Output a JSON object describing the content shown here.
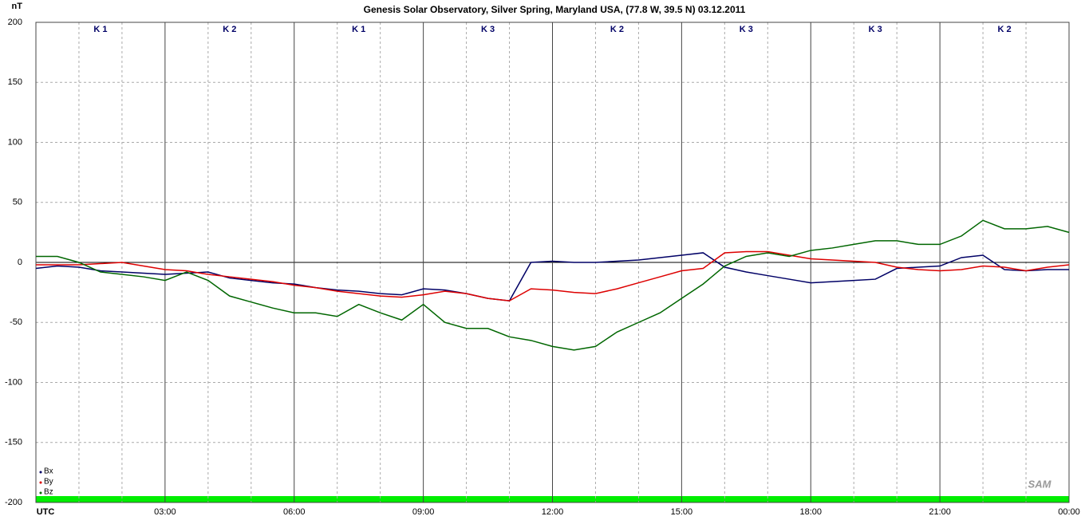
{
  "chart_data": {
    "type": "line",
    "title": "Genesis Solar Observatory, Silver Spring, Maryland USA, (77.8 W, 39.5 N)  03.12.2011",
    "y_label": "nT",
    "logo": "SAM",
    "k_index_labels": [
      "K 1",
      "K 2",
      "K 1",
      "K 3",
      "K 2",
      "K 3",
      "K 3",
      "K 2"
    ],
    "x": [
      0,
      0.5,
      1,
      1.5,
      2,
      2.5,
      3,
      3.5,
      4,
      4.5,
      5,
      5.5,
      6,
      6.5,
      7,
      7.5,
      8,
      8.5,
      9,
      9.5,
      10,
      10.5,
      11,
      11.5,
      12,
      12.5,
      13,
      13.5,
      14,
      14.5,
      15,
      15.5,
      16,
      16.5,
      17,
      17.5,
      18,
      18.5,
      19,
      19.5,
      20,
      20.5,
      21,
      21.5,
      22,
      22.5,
      23,
      23.5,
      24
    ],
    "series": [
      {
        "name": "Bx",
        "color": "#000066",
        "values": [
          -5,
          -3,
          -4,
          -7,
          -8,
          -9,
          -10,
          -9,
          -8,
          -13,
          -15,
          -17,
          -18,
          -21,
          -23,
          -24,
          -26,
          -27,
          -22,
          -23,
          -26,
          -30,
          -32,
          0,
          1,
          0,
          0,
          1,
          2,
          4,
          6,
          8,
          -4,
          -8,
          -11,
          -14,
          -17,
          -16,
          -15,
          -14,
          -5,
          -4,
          -3,
          4,
          6,
          -6,
          -7,
          -6,
          -6
        ]
      },
      {
        "name": "By",
        "color": "#dd0000",
        "values": [
          -2,
          -2,
          -2,
          -1,
          0,
          -3,
          -6,
          -7,
          -10,
          -12,
          -14,
          -16,
          -19,
          -21,
          -24,
          -26,
          -28,
          -29,
          -27,
          -24,
          -26,
          -30,
          -32,
          -22,
          -23,
          -25,
          -26,
          -22,
          -17,
          -12,
          -7,
          -5,
          8,
          9,
          9,
          6,
          3,
          2,
          1,
          0,
          -4,
          -6,
          -7,
          -6,
          -3,
          -4,
          -7,
          -4,
          -2
        ]
      },
      {
        "name": "Bz",
        "color": "#006600",
        "values": [
          5,
          5,
          0,
          -8,
          -10,
          -12,
          -15,
          -8,
          -15,
          -28,
          -33,
          -38,
          -42,
          -42,
          -45,
          -35,
          -42,
          -48,
          -35,
          -50,
          -55,
          -55,
          -62,
          -65,
          -70,
          -73,
          -70,
          -58,
          -50,
          -42,
          -30,
          -18,
          -3,
          5,
          8,
          5,
          10,
          12,
          15,
          18,
          18,
          15,
          15,
          22,
          35,
          28,
          28,
          30,
          25
        ]
      }
    ],
    "xlim": [
      0,
      24
    ],
    "xticks": [
      {
        "value": 0,
        "label": "UTC"
      },
      {
        "value": 3,
        "label": "03:00"
      },
      {
        "value": 6,
        "label": "06:00"
      },
      {
        "value": 9,
        "label": "09:00"
      },
      {
        "value": 12,
        "label": "12:00"
      },
      {
        "value": 15,
        "label": "15:00"
      },
      {
        "value": 18,
        "label": "18:00"
      },
      {
        "value": 21,
        "label": "21:00"
      },
      {
        "value": 24,
        "label": "00:00"
      }
    ],
    "ylim": [
      -200,
      200
    ],
    "yticks": [
      -200,
      -150,
      -100,
      -50,
      0,
      50,
      100,
      150,
      200
    ],
    "grid": true
  }
}
